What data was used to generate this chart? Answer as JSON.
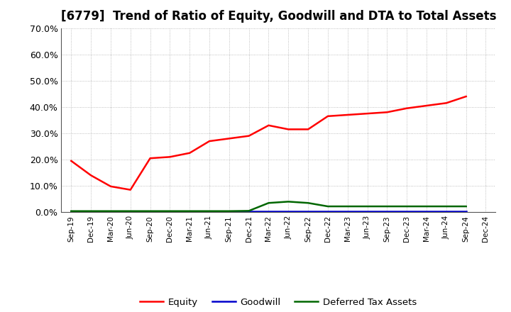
{
  "title": "[6779]  Trend of Ratio of Equity, Goodwill and DTA to Total Assets",
  "x_labels": [
    "Sep-19",
    "Dec-19",
    "Mar-20",
    "Jun-20",
    "Sep-20",
    "Dec-20",
    "Mar-21",
    "Jun-21",
    "Sep-21",
    "Dec-21",
    "Mar-22",
    "Jun-22",
    "Sep-22",
    "Dec-22",
    "Mar-23",
    "Jun-23",
    "Sep-23",
    "Dec-23",
    "Mar-24",
    "Jun-24",
    "Sep-24",
    "Dec-24"
  ],
  "equity": [
    19.5,
    14.0,
    9.8,
    8.5,
    20.5,
    21.0,
    22.5,
    27.0,
    28.0,
    29.0,
    33.0,
    31.5,
    31.5,
    36.5,
    37.0,
    37.5,
    38.0,
    39.5,
    40.5,
    41.5,
    44.0,
    null
  ],
  "goodwill": [
    0.3,
    0.3,
    0.3,
    0.3,
    0.3,
    0.3,
    0.3,
    0.3,
    0.3,
    0.3,
    0.3,
    0.3,
    0.3,
    0.3,
    0.3,
    0.3,
    0.3,
    0.3,
    0.3,
    0.3,
    0.3,
    null
  ],
  "dta": [
    0.4,
    0.4,
    0.4,
    0.4,
    0.4,
    0.4,
    0.4,
    0.4,
    0.4,
    0.5,
    3.5,
    4.0,
    3.5,
    2.2,
    2.2,
    2.2,
    2.2,
    2.2,
    2.2,
    2.2,
    2.2,
    null
  ],
  "equity_color": "#FF0000",
  "goodwill_color": "#0000CC",
  "dta_color": "#006600",
  "ylim": [
    0,
    70
  ],
  "yticks": [
    0,
    10,
    20,
    30,
    40,
    50,
    60,
    70
  ],
  "background_color": "#FFFFFF",
  "grid_color": "#999999",
  "title_fontsize": 12,
  "legend_labels": [
    "Equity",
    "Goodwill",
    "Deferred Tax Assets"
  ]
}
